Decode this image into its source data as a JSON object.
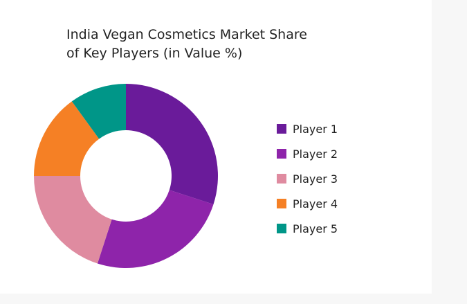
{
  "chart_data": {
    "type": "pie",
    "variant": "donut",
    "title_lines": [
      "India Vegan Cosmetics Market Share",
      "of Key Players (in Value %)"
    ],
    "categories": [
      "Player 1",
      "Player 2",
      "Player 3",
      "Player 4",
      "Player 5"
    ],
    "values": [
      30,
      25,
      20,
      15,
      10
    ],
    "colors": [
      "#6a1b9a",
      "#8e24aa",
      "#df8ba0",
      "#f58025",
      "#009688"
    ],
    "legend_position": "right"
  }
}
